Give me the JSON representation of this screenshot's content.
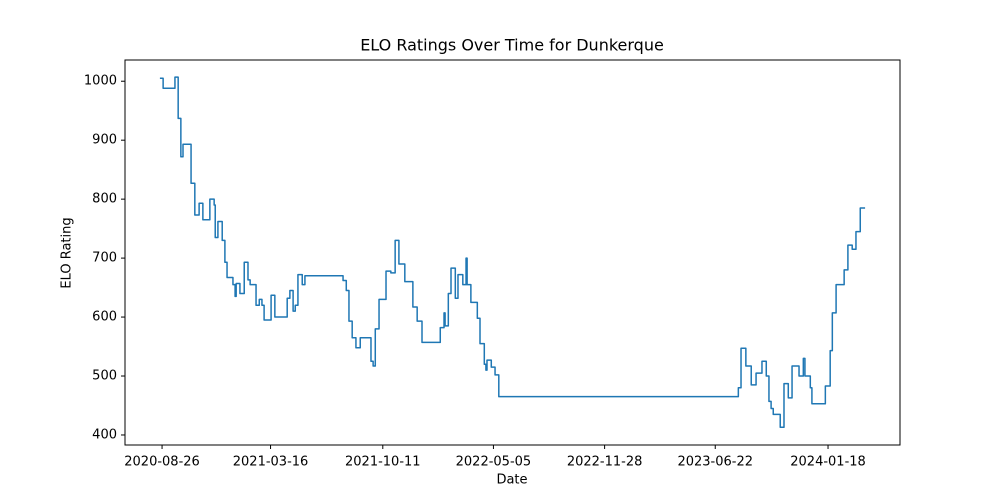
{
  "chart_data": {
    "type": "line",
    "drawstyle": "steps-post",
    "title": "ELO Ratings Over Time for Dunkerque",
    "xlabel": "Date",
    "ylabel": "ELO Rating",
    "color": "#1f77b4",
    "x": [
      "2020-08-22",
      "2020-08-28",
      "2020-09-19",
      "2020-09-25",
      "2020-09-30",
      "2020-10-04",
      "2020-10-19",
      "2020-10-26",
      "2020-11-03",
      "2020-11-10",
      "2020-11-23",
      "2020-12-01",
      "2020-12-03",
      "2020-12-08",
      "2020-12-16",
      "2020-12-21",
      "2020-12-25",
      "2021-01-05",
      "2021-01-09",
      "2021-01-11",
      "2021-01-18",
      "2021-01-26",
      "2021-02-02",
      "2021-02-06",
      "2021-02-17",
      "2021-02-23",
      "2021-02-28",
      "2021-03-04",
      "2021-03-17",
      "2021-03-24",
      "2021-04-16",
      "2021-04-21",
      "2021-04-27",
      "2021-05-01",
      "2021-05-06",
      "2021-05-14",
      "2021-05-19",
      "2021-07-29",
      "2021-08-04",
      "2021-08-09",
      "2021-08-15",
      "2021-08-22",
      "2021-08-30",
      "2021-09-19",
      "2021-09-23",
      "2021-09-27",
      "2021-10-04",
      "2021-10-17",
      "2021-10-26",
      "2021-11-03",
      "2021-11-10",
      "2021-11-21",
      "2021-12-06",
      "2021-12-14",
      "2021-12-23",
      "2022-01-26",
      "2022-02-02",
      "2022-02-04",
      "2022-02-10",
      "2022-02-15",
      "2022-02-23",
      "2022-02-28",
      "2022-03-09",
      "2022-03-15",
      "2022-03-17",
      "2022-03-24",
      "2022-04-05",
      "2022-04-10",
      "2022-04-18",
      "2022-04-21",
      "2022-04-23",
      "2022-05-01",
      "2022-05-08",
      "2022-05-15",
      "2023-08-04",
      "2023-08-09",
      "2023-08-18",
      "2023-08-28",
      "2023-09-06",
      "2023-09-17",
      "2023-09-25",
      "2023-09-30",
      "2023-10-04",
      "2023-10-08",
      "2023-10-21",
      "2023-10-28",
      "2023-11-05",
      "2023-11-12",
      "2023-11-25",
      "2023-12-03",
      "2023-12-06",
      "2023-12-16",
      "2023-12-19",
      "2024-01-13",
      "2024-01-22",
      "2024-01-26",
      "2024-02-02",
      "2024-02-17",
      "2024-02-24",
      "2024-03-03",
      "2024-03-10",
      "2024-03-18",
      "2024-03-27"
    ],
    "values": [
      1005,
      988,
      1007,
      937,
      872,
      893,
      827,
      773,
      793,
      765,
      800,
      790,
      735,
      762,
      730,
      693,
      667,
      655,
      635,
      657,
      640,
      693,
      663,
      655,
      620,
      630,
      620,
      595,
      637,
      600,
      632,
      645,
      610,
      620,
      672,
      655,
      670,
      662,
      645,
      593,
      565,
      548,
      565,
      525,
      517,
      580,
      630,
      678,
      675,
      730,
      690,
      660,
      617,
      593,
      557,
      582,
      607,
      585,
      640,
      683,
      632,
      672,
      655,
      700,
      655,
      625,
      598,
      555,
      520,
      510,
      527,
      515,
      502,
      465,
      480,
      547,
      517,
      485,
      505,
      525,
      500,
      457,
      445,
      435,
      413,
      487,
      463,
      517,
      500,
      530,
      500,
      480,
      453,
      483,
      543,
      607,
      655,
      680,
      722,
      715,
      745,
      785,
      785
    ],
    "xlim": [
      "2020-06-18",
      "2024-05-31"
    ],
    "xticks": [
      "2020-08-26",
      "2021-03-16",
      "2021-10-11",
      "2022-05-05",
      "2022-11-28",
      "2023-06-22",
      "2024-01-18"
    ],
    "ylim": [
      383,
      1036
    ],
    "yticks": [
      400,
      500,
      600,
      700,
      800,
      900,
      1000
    ],
    "grid": false
  }
}
